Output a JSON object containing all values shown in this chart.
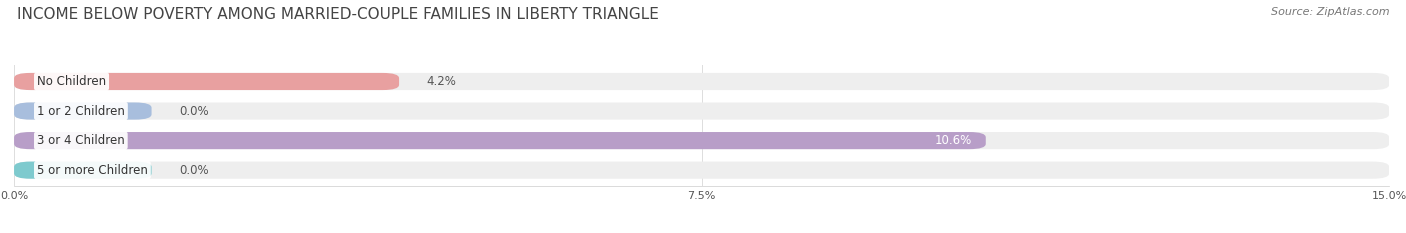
{
  "title": "INCOME BELOW POVERTY AMONG MARRIED-COUPLE FAMILIES IN LIBERTY TRIANGLE",
  "source": "Source: ZipAtlas.com",
  "categories": [
    "No Children",
    "1 or 2 Children",
    "3 or 4 Children",
    "5 or more Children"
  ],
  "values": [
    4.2,
    0.0,
    10.6,
    0.0
  ],
  "bar_colors": [
    "#e8a0a0",
    "#a8bedd",
    "#b89ec8",
    "#7ecace"
  ],
  "bar_bg_color": "#eeeeee",
  "bar_height": 0.58,
  "xlim": [
    0,
    15.0
  ],
  "xticks": [
    0.0,
    7.5,
    15.0
  ],
  "xtick_labels": [
    "0.0%",
    "7.5%",
    "15.0%"
  ],
  "title_fontsize": 11,
  "source_fontsize": 8,
  "label_fontsize": 8.5,
  "value_fontsize": 8.5,
  "background_color": "#ffffff",
  "grid_color": "#dddddd",
  "text_color": "#555555",
  "title_color": "#444444"
}
